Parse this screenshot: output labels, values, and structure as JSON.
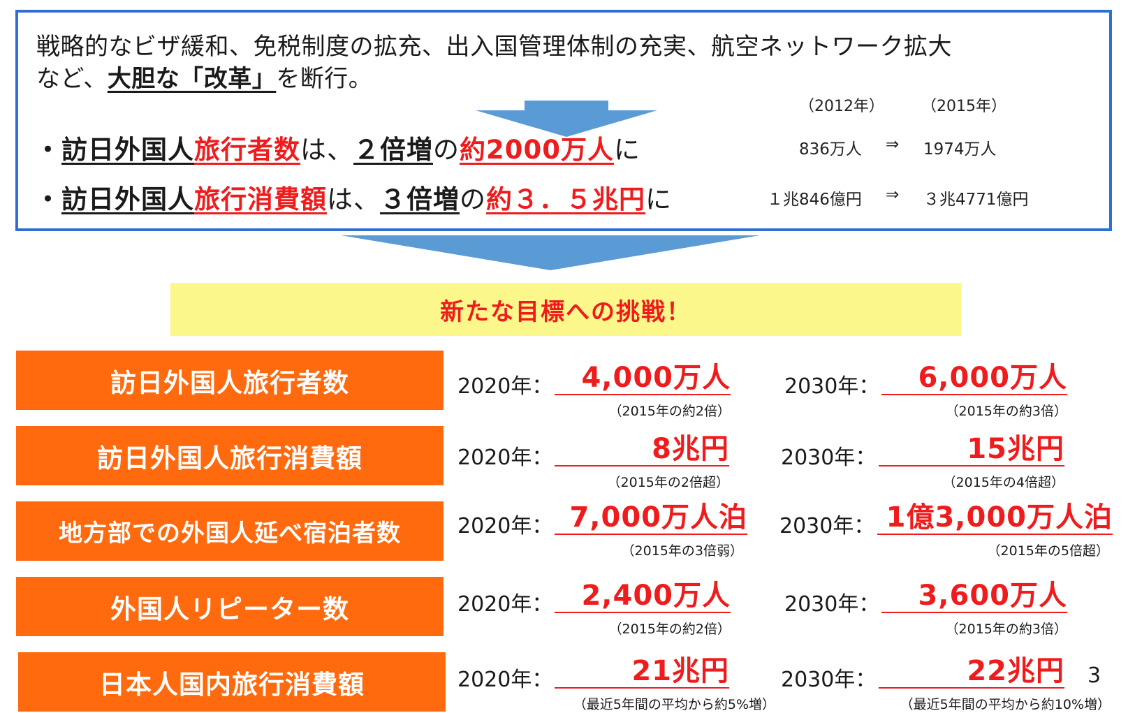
{
  "intro": {
    "line1": "戦略的なビザ緩和、免税制度の拡充、出入国管理体制の充実、航空ネットワーク拡大",
    "line2_pre": "など、",
    "line2_bold": "大胆な「改革」",
    "line2_post": "を断行。"
  },
  "year_heads": {
    "from": "（2012年）",
    "to": "（2015年）"
  },
  "bullets": [
    {
      "dot": "・",
      "subject": "訪日外国人",
      "metric": "旅行者数",
      "particle": "は、",
      "multiplier": "２倍増",
      "no": "の",
      "target": "約2000万人",
      "ni": "に",
      "before": "836万人",
      "arrow": "⇒",
      "after": "1974万人"
    },
    {
      "dot": "・",
      "subject": "訪日外国人",
      "metric": "旅行消費額",
      "particle": "は、",
      "multiplier": "３倍増",
      "no": "の",
      "target": "約３．５兆円",
      "ni": "に",
      "before": "１兆846億円",
      "arrow": "⇒",
      "after": "３兆4771億円"
    }
  ],
  "banner": "新たな目標への挑戦！",
  "year_2020": "2020年：",
  "year_2030": "2030年：",
  "targets": [
    {
      "label": "訪日外国人旅行者数",
      "v2020": "4,000万人",
      "n2020": "（2015年の約2倍）",
      "v2030": "6,000万人",
      "n2030": "（2015年の約3倍）"
    },
    {
      "label": "訪日外国人旅行消費額",
      "v2020": "8兆円",
      "n2020": "（2015年の2倍超）",
      "v2030": "15兆円",
      "n2030": "（2015年の4倍超）"
    },
    {
      "label": "地方部での外国人延べ宿泊者数",
      "v2020": "7,000万人泊",
      "n2020": "（2015年の3倍弱）",
      "v2030": "1億3,000万人泊",
      "n2030": "（2015年の5倍超）"
    },
    {
      "label": "外国人リピーター数",
      "v2020": "2,400万人",
      "n2020": "（2015年の約2倍）",
      "v2030": "3,600万人",
      "n2030": "（2015年の約3倍）"
    },
    {
      "label": "日本人国内旅行消費額",
      "v2020": "21兆円",
      "n2020": "（最近5年間の平均から約5%増）",
      "v2030": "22兆円",
      "n2030": "（最近5年間の平均から約10%増）"
    }
  ],
  "page_number": "3",
  "colors": {
    "box_border": "#2f6fd3",
    "arrow": "#5b9bd5",
    "accent_red": "#ee1c1c",
    "label_orange": "#ff6a0e",
    "banner_yellow": "#fbf78a"
  }
}
